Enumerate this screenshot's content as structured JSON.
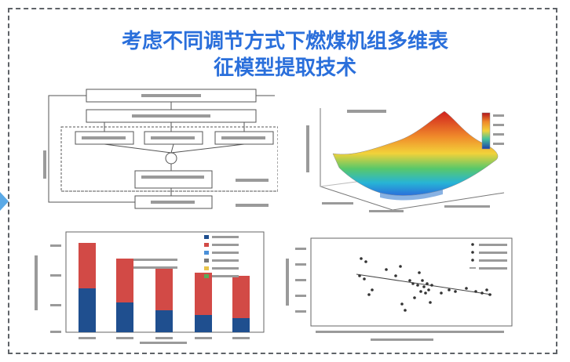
{
  "header": {
    "title_line1": "考虑不同调节方式下燃煤机组多维表",
    "title_line2": "征模型提取技术"
  },
  "colors": {
    "title": "#2a6fdb",
    "frame_border": "#5f6368",
    "arrow": "#5aa9e6",
    "bar_red": "#d24a46",
    "bar_blue": "#1f4f8f",
    "surface_high": "#d0201e",
    "surface_mid": "#f2d23a",
    "surface_low": "#2a6fdb"
  },
  "icons": {
    "left_arrow": "play-arrow-icon"
  }
}
